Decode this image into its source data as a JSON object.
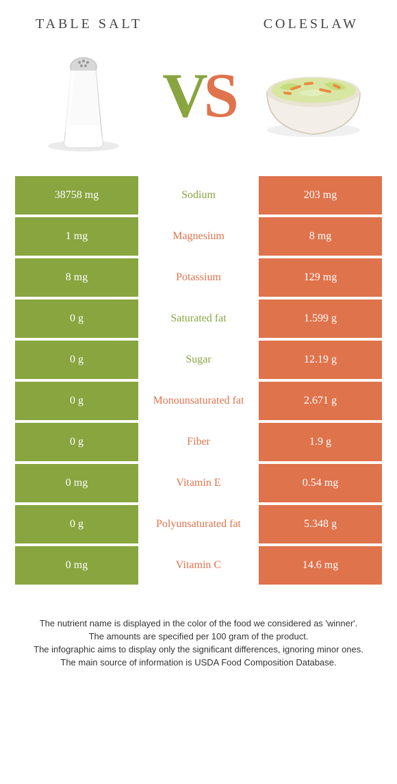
{
  "header": {
    "left_title": "Table salt",
    "right_title": "Coleslaw"
  },
  "colors": {
    "left": "#88a53f",
    "right": "#df734c",
    "background": "#ffffff"
  },
  "vs": {
    "v": "V",
    "s": "S"
  },
  "comparison": {
    "type": "table",
    "rows": [
      {
        "label": "Sodium",
        "left_value": "38758 mg",
        "right_value": "203 mg",
        "winner": "left"
      },
      {
        "label": "Magnesium",
        "left_value": "1 mg",
        "right_value": "8 mg",
        "winner": "right"
      },
      {
        "label": "Potassium",
        "left_value": "8 mg",
        "right_value": "129 mg",
        "winner": "right"
      },
      {
        "label": "Saturated fat",
        "left_value": "0 g",
        "right_value": "1.599 g",
        "winner": "left"
      },
      {
        "label": "Sugar",
        "left_value": "0 g",
        "right_value": "12.19 g",
        "winner": "left"
      },
      {
        "label": "Monounsaturated fat",
        "left_value": "0 g",
        "right_value": "2.671 g",
        "winner": "right"
      },
      {
        "label": "Fiber",
        "left_value": "0 g",
        "right_value": "1.9 g",
        "winner": "right"
      },
      {
        "label": "Vitamin E",
        "left_value": "0 mg",
        "right_value": "0.54 mg",
        "winner": "right"
      },
      {
        "label": "Polyunsaturated fat",
        "left_value": "0 g",
        "right_value": "5.348 g",
        "winner": "right"
      },
      {
        "label": "Vitamin C",
        "left_value": "0 mg",
        "right_value": "14.6 mg",
        "winner": "right"
      }
    ]
  },
  "footnotes": {
    "line1": "The nutrient name is displayed in the color of the food we considered as 'winner'.",
    "line2": "The amounts are specified per 100 gram of the product.",
    "line3": "The infographic aims to display only the significant differences, ignoring minor ones.",
    "line4": "The main source of information is USDA Food Composition Database."
  }
}
